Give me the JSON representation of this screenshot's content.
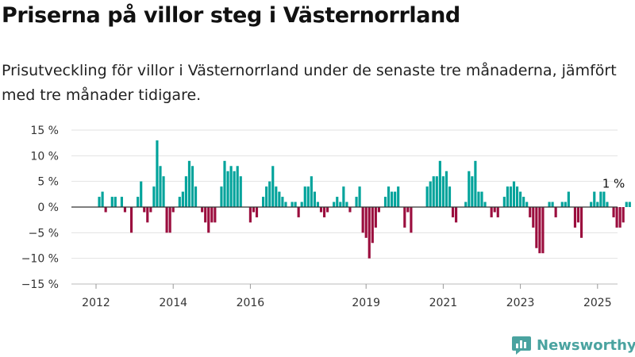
{
  "title": "Priserna på villor steg i Västernorrland",
  "subtitle": "Prisutveckling för villor i Västernorrland under de senaste tre månaderna, jämfört med tre månader tidigare.",
  "logo_text": "Newsworthy",
  "colors": {
    "positive": "#00a39b",
    "negative": "#9b0e3e",
    "zero_line": "#333333",
    "grid": "#e2e2e2",
    "logo": "#4aa3a0"
  },
  "chart_data": {
    "type": "bar",
    "title": "Priserna på villor steg i Västernorrland",
    "subtitle": "Prisutveckling för villor i Västernorrland under de senaste tre månaderna, jämfört med tre månader tidigare.",
    "ylim": [
      -15,
      15
    ],
    "yticks": [
      15,
      10,
      5,
      0,
      -5,
      -10,
      -15
    ],
    "ytick_labels": [
      "15 %",
      "10 %",
      "5 %",
      "0 %",
      "−5 %",
      "−10 %",
      "−15 %"
    ],
    "xticks": [
      "2012",
      "2014",
      "2016",
      "2019",
      "2021",
      "2023",
      "2025"
    ],
    "xtick_years": [
      2012,
      2014,
      2016,
      2019,
      2021,
      2023,
      2025
    ],
    "grid": true,
    "legend": "none",
    "series": [
      {
        "x_start": "2012-02",
        "frequency": "monthly",
        "values": [
          2,
          3,
          -1,
          0,
          2,
          2,
          0,
          2,
          -1,
          0,
          -5,
          0,
          2,
          5,
          -1,
          -3,
          -1,
          4,
          13,
          8,
          6,
          -5,
          -5,
          -1,
          0,
          2,
          3,
          6,
          9,
          8,
          4,
          0,
          -1,
          -3,
          -5,
          -3,
          -3,
          0,
          4,
          9,
          7,
          8,
          7,
          8,
          6,
          0,
          0,
          -3,
          -1,
          -2,
          0,
          2,
          4,
          5,
          8,
          4,
          3,
          2,
          1,
          0,
          1,
          1,
          -2,
          1,
          4,
          4,
          6,
          3,
          1,
          -1,
          -2,
          -1,
          0,
          1,
          2,
          1,
          4,
          1,
          -1,
          0,
          2,
          4,
          -5,
          -6,
          -10,
          -7,
          -4,
          -1,
          0,
          2,
          4,
          3,
          3,
          4,
          0,
          -4,
          -1,
          -5,
          0,
          0,
          0,
          0,
          4,
          5,
          6,
          6,
          9,
          6,
          7,
          4,
          -2,
          -3,
          0,
          0,
          1,
          7,
          6,
          9,
          3,
          3,
          1,
          0,
          -2,
          -1,
          -2,
          0,
          2,
          4,
          4,
          5,
          4,
          3,
          2,
          1,
          -2,
          -4,
          -8,
          -9,
          -9,
          0,
          1,
          1,
          -2,
          0,
          1,
          1,
          3,
          0,
          -4,
          -3,
          -6,
          0,
          0,
          1,
          3,
          1,
          3,
          3,
          1,
          0,
          -2,
          -4,
          -4,
          -3,
          1,
          1
        ]
      }
    ],
    "annotations": [
      {
        "text": "1 %",
        "x": "2025-06",
        "y": 1
      }
    ]
  }
}
